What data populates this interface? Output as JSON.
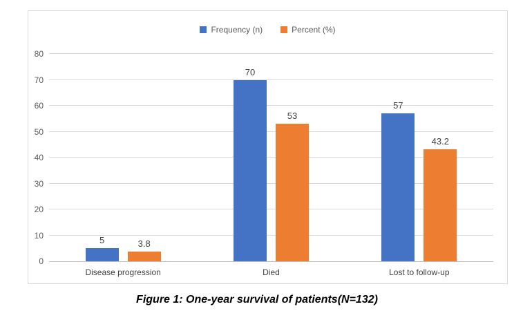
{
  "caption": "Figure 1: One-year survival of patients(N=132)",
  "colors": {
    "series_blue": "#4472C4",
    "series_orange": "#ED7D31",
    "gridline": "#D9D9D9",
    "axis_line": "#BFBFBF",
    "tick_label": "#595959",
    "data_label": "#404040",
    "chart_border": "#D9D9D9",
    "background": "#FFFFFF"
  },
  "chart_data": {
    "type": "bar",
    "title": "",
    "xlabel": "",
    "ylabel": "",
    "categories": [
      "Disease progression",
      "Died",
      "Lost to follow-up"
    ],
    "series": [
      {
        "name": "Frequency (n)",
        "color": "#4472C4",
        "values": [
          5,
          70,
          57
        ],
        "labels": [
          "5",
          "70",
          "57"
        ]
      },
      {
        "name": "Percent (%)",
        "color": "#ED7D31",
        "values": [
          3.8,
          53,
          43.2
        ],
        "labels": [
          "3.8",
          "53",
          "43.2"
        ]
      }
    ],
    "ylim": [
      0,
      80
    ],
    "ytick_step": 10,
    "ytick_labels": [
      "0",
      "10",
      "20",
      "30",
      "40",
      "50",
      "60",
      "70",
      "80"
    ],
    "grid": true,
    "legend_position": "top"
  }
}
